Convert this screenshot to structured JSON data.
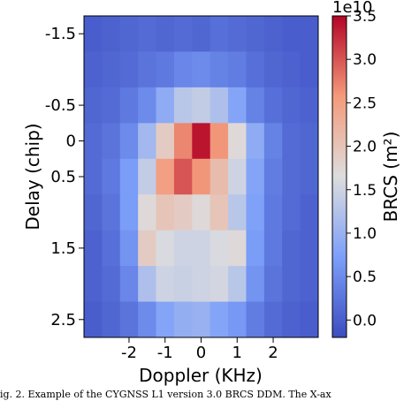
{
  "chart_data": {
    "type": "heatmap",
    "xlabel": "Doppler (KHz)",
    "ylabel": "Delay (chip)",
    "colorbar_label": "BRCS (m²)",
    "colorbar_exponent": "1e10",
    "colormap": "coolwarm",
    "color_range": [
      -0.2,
      3.5
    ],
    "x_range": [
      -3.25,
      3.25
    ],
    "y_range": [
      -1.75,
      2.75
    ],
    "x_ticks": [
      "-2",
      "-1",
      "0",
      "1",
      "2"
    ],
    "y_ticks": [
      "-1.5",
      "-0.5",
      "0",
      "0.5",
      "1.5",
      "2.5"
    ],
    "colorbar_ticks": [
      "0.0",
      "0.5",
      "1.0",
      "1.5",
      "2.0",
      "2.5",
      "3.0",
      "3.5"
    ],
    "x_centers": [
      -3.0,
      -2.5,
      -2.0,
      -1.5,
      -1.0,
      -0.5,
      0.0,
      0.5,
      1.0,
      1.5,
      2.0,
      2.5,
      3.0
    ],
    "y_centers": [
      -1.5,
      -1.0,
      -0.5,
      0.0,
      0.5,
      1.0,
      1.5,
      2.0,
      2.5
    ],
    "values_e10": [
      [
        0.0,
        0.05,
        0.1,
        0.15,
        0.1,
        0.15,
        0.1,
        0.2,
        0.15,
        0.1,
        0.05,
        0.0,
        0.0
      ],
      [
        0.05,
        0.1,
        0.15,
        0.25,
        0.3,
        0.45,
        0.5,
        0.4,
        0.35,
        0.2,
        0.1,
        0.05,
        0.0
      ],
      [
        0.1,
        0.15,
        0.3,
        0.5,
        0.9,
        1.3,
        1.4,
        1.2,
        0.8,
        0.4,
        0.2,
        0.1,
        0.05
      ],
      [
        0.15,
        0.25,
        0.5,
        1.1,
        1.9,
        2.7,
        3.4,
        2.6,
        1.7,
        0.9,
        0.4,
        0.15,
        0.1
      ],
      [
        0.15,
        0.3,
        0.7,
        1.4,
        2.5,
        3.0,
        2.6,
        2.1,
        1.5,
        0.8,
        0.35,
        0.15,
        0.1
      ],
      [
        0.1,
        0.25,
        0.7,
        1.7,
        2.0,
        1.9,
        1.7,
        2.0,
        1.3,
        0.75,
        0.3,
        0.15,
        0.05
      ],
      [
        0.05,
        0.2,
        0.6,
        1.9,
        1.6,
        1.5,
        1.5,
        1.6,
        1.7,
        0.7,
        0.3,
        0.1,
        0.05
      ],
      [
        0.05,
        0.15,
        0.45,
        1.2,
        1.5,
        1.45,
        1.5,
        1.55,
        1.3,
        0.6,
        0.25,
        0.1,
        0.05
      ],
      [
        0.0,
        0.1,
        0.25,
        0.5,
        0.8,
        0.95,
        1.0,
        0.8,
        0.65,
        0.35,
        0.15,
        0.05,
        0.0
      ]
    ]
  },
  "caption": "ig. 2.    Example of the CYGNSS L1 version 3.0 BRCS DDM. The X-ax"
}
